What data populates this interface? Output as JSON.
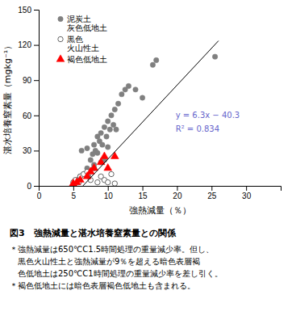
{
  "chart_data": {
    "type": "scatter",
    "title": "図3　強熱減量と湛水培養窒素量との関係",
    "x_label": "強熱減量（％）",
    "y_label": "湛水培養窒素量（mgkg⁻¹）",
    "xlim": [
      0,
      35
    ],
    "ylim": [
      0,
      150
    ],
    "xticks": [
      0,
      5,
      10,
      15,
      20,
      25,
      30
    ],
    "yticks": [
      0,
      30,
      60,
      90,
      120,
      150
    ],
    "legend": "upper left",
    "series": [
      {
        "name": "泥炭土\n灰色低地土",
        "type": "scatter",
        "marker": "circle",
        "color": "#808080",
        "x": [
          5.5,
          6.0,
          6.2,
          6.5,
          7.0,
          7.0,
          7.2,
          7.5,
          7.8,
          8.0,
          8.0,
          8.2,
          8.5,
          8.5,
          8.8,
          9.0,
          9.0,
          9.2,
          9.5,
          9.5,
          9.8,
          10.0,
          10.0,
          10.3,
          10.5,
          10.8,
          11.0,
          11.2,
          11.5,
          12.0,
          12.5,
          13.0,
          14.0,
          15.0,
          16.5,
          17.0,
          25.5
        ],
        "values": [
          5,
          8,
          30,
          10,
          15,
          32,
          8,
          22,
          27,
          18,
          35,
          30,
          42,
          28,
          38,
          20,
          45,
          35,
          50,
          22,
          42,
          55,
          33,
          48,
          60,
          52,
          65,
          48,
          70,
          78,
          82,
          85,
          82,
          75,
          103,
          107,
          110
        ]
      },
      {
        "name": "黒色\n火山性土",
        "type": "scatter",
        "marker": "open-circle",
        "color": "#404040",
        "x": [
          5.0,
          5.3,
          5.8,
          6.0,
          6.5,
          7.0,
          7.5,
          8.0,
          8.5,
          9.0,
          9.5,
          10.0,
          10.5,
          11.0
        ],
        "values": [
          3,
          5,
          3,
          8,
          10,
          12,
          5,
          15,
          3,
          8,
          5,
          3,
          10,
          2
        ]
      },
      {
        "name": "褐色低地土",
        "type": "scatter",
        "marker": "triangle",
        "color": "#ff0000",
        "x": [
          5.0,
          5.5,
          6.0,
          7.0,
          7.5,
          8.0,
          9.0,
          9.5,
          10.0,
          11.0
        ],
        "values": [
          2,
          3,
          5,
          8,
          12,
          15,
          20,
          25,
          15,
          25
        ]
      },
      {
        "type": "line",
        "line_style": "solid",
        "color": "#000000",
        "x": [
          6.4,
          26.0
        ],
        "values": [
          0.02,
          123.5
        ]
      }
    ],
    "annotations": [
      {
        "text": "y = 6.3x − 40.3",
        "color": "#6666cc"
      },
      {
        "text": "R² = 0.834",
        "color": "#6666cc"
      }
    ],
    "notes": [
      "＊強熱減量は650℃C1.5時間処理の重量減少率。但し、",
      "　黒色火山性土と強熱減量が9％を超える暗色表層褐",
      "　色低地土は250℃C1時間処理の重量減少率を差し引く。",
      "＊褐色低地土には暗色表層褐色低地土も含まれる。"
    ]
  }
}
